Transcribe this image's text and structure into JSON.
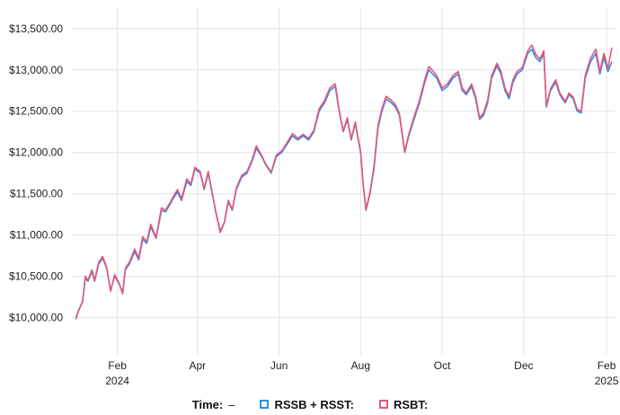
{
  "chart_data": {
    "type": "line",
    "y_ticks": [
      "$10,000.00",
      "$10,500.00",
      "$11,000.00",
      "$11,500.00",
      "$12,000.00",
      "$12,500.00",
      "$13,000.00",
      "$13,500.00"
    ],
    "ylim": [
      9550,
      13650
    ],
    "x_ticks": [
      {
        "label": "Feb",
        "sub": "2024",
        "date": "2024-02-01"
      },
      {
        "label": "Apr",
        "sub": "",
        "date": "2024-04-01"
      },
      {
        "label": "Jun",
        "sub": "",
        "date": "2024-06-01"
      },
      {
        "label": "Aug",
        "sub": "",
        "date": "2024-08-01"
      },
      {
        "label": "Oct",
        "sub": "",
        "date": "2024-10-01"
      },
      {
        "label": "Dec",
        "sub": "",
        "date": "2024-12-01"
      },
      {
        "label": "Feb",
        "sub": "2025",
        "date": "2025-02-01"
      }
    ],
    "xlim": [
      "2023-12-29",
      "2025-02-07"
    ],
    "series": [
      {
        "name": "RSSB + RSST",
        "color": "#2f8fe0",
        "points": [
          [
            "2024-01-01",
            10000
          ],
          [
            "2024-01-03",
            10080
          ],
          [
            "2024-01-06",
            10200
          ],
          [
            "2024-01-08",
            10480
          ],
          [
            "2024-01-10",
            10440
          ],
          [
            "2024-01-13",
            10560
          ],
          [
            "2024-01-15",
            10440
          ],
          [
            "2024-01-18",
            10650
          ],
          [
            "2024-01-21",
            10720
          ],
          [
            "2024-01-24",
            10600
          ],
          [
            "2024-01-27",
            10330
          ],
          [
            "2024-01-30",
            10500
          ],
          [
            "2024-02-02",
            10420
          ],
          [
            "2024-02-05",
            10300
          ],
          [
            "2024-02-07",
            10580
          ],
          [
            "2024-02-10",
            10650
          ],
          [
            "2024-02-14",
            10800
          ],
          [
            "2024-02-17",
            10700
          ],
          [
            "2024-02-20",
            10950
          ],
          [
            "2024-02-23",
            10900
          ],
          [
            "2024-02-26",
            11100
          ],
          [
            "2024-03-01",
            10960
          ],
          [
            "2024-03-05",
            11300
          ],
          [
            "2024-03-08",
            11280
          ],
          [
            "2024-03-11",
            11360
          ],
          [
            "2024-03-14",
            11450
          ],
          [
            "2024-03-17",
            11520
          ],
          [
            "2024-03-20",
            11420
          ],
          [
            "2024-03-24",
            11650
          ],
          [
            "2024-03-27",
            11600
          ],
          [
            "2024-03-30",
            11800
          ],
          [
            "2024-04-03",
            11750
          ],
          [
            "2024-04-06",
            11550
          ],
          [
            "2024-04-09",
            11750
          ],
          [
            "2024-04-12",
            11500
          ],
          [
            "2024-04-15",
            11250
          ],
          [
            "2024-04-18",
            11050
          ],
          [
            "2024-04-21",
            11150
          ],
          [
            "2024-04-24",
            11400
          ],
          [
            "2024-04-27",
            11300
          ],
          [
            "2024-04-30",
            11550
          ],
          [
            "2024-05-04",
            11700
          ],
          [
            "2024-05-08",
            11750
          ],
          [
            "2024-05-12",
            11900
          ],
          [
            "2024-05-15",
            12050
          ],
          [
            "2024-05-19",
            11950
          ],
          [
            "2024-05-22",
            11850
          ],
          [
            "2024-05-26",
            11750
          ],
          [
            "2024-05-30",
            11950
          ],
          [
            "2024-06-03",
            12000
          ],
          [
            "2024-06-07",
            12100
          ],
          [
            "2024-06-11",
            12200
          ],
          [
            "2024-06-15",
            12150
          ],
          [
            "2024-06-19",
            12200
          ],
          [
            "2024-06-23",
            12150
          ],
          [
            "2024-06-27",
            12250
          ],
          [
            "2024-07-01",
            12500
          ],
          [
            "2024-07-05",
            12600
          ],
          [
            "2024-07-09",
            12750
          ],
          [
            "2024-07-13",
            12800
          ],
          [
            "2024-07-16",
            12500
          ],
          [
            "2024-07-19",
            12250
          ],
          [
            "2024-07-22",
            12400
          ],
          [
            "2024-07-25",
            12150
          ],
          [
            "2024-07-28",
            12350
          ],
          [
            "2024-08-01",
            12000
          ],
          [
            "2024-08-03",
            11600
          ],
          [
            "2024-08-05",
            11300
          ],
          [
            "2024-08-08",
            11500
          ],
          [
            "2024-08-11",
            11800
          ],
          [
            "2024-08-14",
            12300
          ],
          [
            "2024-08-17",
            12500
          ],
          [
            "2024-08-20",
            12650
          ],
          [
            "2024-08-24",
            12600
          ],
          [
            "2024-08-27",
            12550
          ],
          [
            "2024-08-30",
            12450
          ],
          [
            "2024-09-03",
            12000
          ],
          [
            "2024-09-06",
            12200
          ],
          [
            "2024-09-10",
            12400
          ],
          [
            "2024-09-14",
            12600
          ],
          [
            "2024-09-18",
            12850
          ],
          [
            "2024-09-21",
            13000
          ],
          [
            "2024-09-24",
            12950
          ],
          [
            "2024-09-27",
            12900
          ],
          [
            "2024-10-01",
            12750
          ],
          [
            "2024-10-05",
            12800
          ],
          [
            "2024-10-09",
            12900
          ],
          [
            "2024-10-13",
            12950
          ],
          [
            "2024-10-16",
            12750
          ],
          [
            "2024-10-19",
            12700
          ],
          [
            "2024-10-23",
            12800
          ],
          [
            "2024-10-26",
            12650
          ],
          [
            "2024-10-29",
            12400
          ],
          [
            "2024-11-01",
            12450
          ],
          [
            "2024-11-04",
            12600
          ],
          [
            "2024-11-07",
            12900
          ],
          [
            "2024-11-11",
            13050
          ],
          [
            "2024-11-14",
            12950
          ],
          [
            "2024-11-17",
            12750
          ],
          [
            "2024-11-20",
            12650
          ],
          [
            "2024-11-23",
            12850
          ],
          [
            "2024-11-26",
            12950
          ],
          [
            "2024-11-30",
            13000
          ],
          [
            "2024-12-04",
            13200
          ],
          [
            "2024-12-07",
            13250
          ],
          [
            "2024-12-10",
            13150
          ],
          [
            "2024-12-13",
            13100
          ],
          [
            "2024-12-16",
            13200
          ],
          [
            "2024-12-18",
            12550
          ],
          [
            "2024-12-21",
            12750
          ],
          [
            "2024-12-25",
            12850
          ],
          [
            "2024-12-28",
            12700
          ],
          [
            "2025-01-01",
            12600
          ],
          [
            "2025-01-04",
            12700
          ],
          [
            "2025-01-07",
            12650
          ],
          [
            "2025-01-10",
            12500
          ],
          [
            "2025-01-13",
            12480
          ],
          [
            "2025-01-16",
            12900
          ],
          [
            "2025-01-20",
            13100
          ],
          [
            "2025-01-24",
            13200
          ],
          [
            "2025-01-27",
            12950
          ],
          [
            "2025-01-30",
            13150
          ],
          [
            "2025-02-02",
            12980
          ],
          [
            "2025-02-05",
            13100
          ]
        ]
      },
      {
        "name": "RSBT",
        "color": "#e8557a",
        "points": [
          [
            "2024-01-01",
            9980
          ],
          [
            "2024-01-03",
            10090
          ],
          [
            "2024-01-06",
            10190
          ],
          [
            "2024-01-08",
            10500
          ],
          [
            "2024-01-10",
            10450
          ],
          [
            "2024-01-13",
            10580
          ],
          [
            "2024-01-15",
            10450
          ],
          [
            "2024-01-18",
            10670
          ],
          [
            "2024-01-21",
            10740
          ],
          [
            "2024-01-24",
            10610
          ],
          [
            "2024-01-27",
            10320
          ],
          [
            "2024-01-30",
            10520
          ],
          [
            "2024-02-02",
            10430
          ],
          [
            "2024-02-05",
            10290
          ],
          [
            "2024-02-07",
            10600
          ],
          [
            "2024-02-10",
            10670
          ],
          [
            "2024-02-14",
            10830
          ],
          [
            "2024-02-17",
            10720
          ],
          [
            "2024-02-20",
            10980
          ],
          [
            "2024-02-23",
            10920
          ],
          [
            "2024-02-26",
            11130
          ],
          [
            "2024-03-01",
            10970
          ],
          [
            "2024-03-05",
            11330
          ],
          [
            "2024-03-08",
            11300
          ],
          [
            "2024-03-11",
            11380
          ],
          [
            "2024-03-14",
            11470
          ],
          [
            "2024-03-17",
            11550
          ],
          [
            "2024-03-20",
            11440
          ],
          [
            "2024-03-24",
            11680
          ],
          [
            "2024-03-27",
            11620
          ],
          [
            "2024-03-30",
            11820
          ],
          [
            "2024-04-03",
            11770
          ],
          [
            "2024-04-06",
            11560
          ],
          [
            "2024-04-09",
            11770
          ],
          [
            "2024-04-12",
            11510
          ],
          [
            "2024-04-15",
            11250
          ],
          [
            "2024-04-18",
            11030
          ],
          [
            "2024-04-21",
            11150
          ],
          [
            "2024-04-24",
            11420
          ],
          [
            "2024-04-27",
            11310
          ],
          [
            "2024-04-30",
            11570
          ],
          [
            "2024-05-04",
            11720
          ],
          [
            "2024-05-08",
            11770
          ],
          [
            "2024-05-12",
            11920
          ],
          [
            "2024-05-15",
            12080
          ],
          [
            "2024-05-19",
            11960
          ],
          [
            "2024-05-22",
            11860
          ],
          [
            "2024-05-26",
            11760
          ],
          [
            "2024-05-30",
            11970
          ],
          [
            "2024-06-03",
            12020
          ],
          [
            "2024-06-07",
            12120
          ],
          [
            "2024-06-11",
            12230
          ],
          [
            "2024-06-15",
            12170
          ],
          [
            "2024-06-19",
            12220
          ],
          [
            "2024-06-23",
            12170
          ],
          [
            "2024-06-27",
            12270
          ],
          [
            "2024-07-01",
            12530
          ],
          [
            "2024-07-05",
            12630
          ],
          [
            "2024-07-09",
            12780
          ],
          [
            "2024-07-13",
            12830
          ],
          [
            "2024-07-16",
            12510
          ],
          [
            "2024-07-19",
            12260
          ],
          [
            "2024-07-22",
            12420
          ],
          [
            "2024-07-25",
            12160
          ],
          [
            "2024-07-28",
            12370
          ],
          [
            "2024-08-01",
            12010
          ],
          [
            "2024-08-03",
            11600
          ],
          [
            "2024-08-05",
            11310
          ],
          [
            "2024-08-08",
            11520
          ],
          [
            "2024-08-11",
            11830
          ],
          [
            "2024-08-14",
            12330
          ],
          [
            "2024-08-17",
            12530
          ],
          [
            "2024-08-20",
            12680
          ],
          [
            "2024-08-24",
            12630
          ],
          [
            "2024-08-27",
            12580
          ],
          [
            "2024-08-30",
            12470
          ],
          [
            "2024-09-03",
            12010
          ],
          [
            "2024-09-06",
            12220
          ],
          [
            "2024-09-10",
            12430
          ],
          [
            "2024-09-14",
            12630
          ],
          [
            "2024-09-18",
            12880
          ],
          [
            "2024-09-21",
            13040
          ],
          [
            "2024-09-24",
            12990
          ],
          [
            "2024-09-27",
            12930
          ],
          [
            "2024-10-01",
            12780
          ],
          [
            "2024-10-05",
            12830
          ],
          [
            "2024-10-09",
            12930
          ],
          [
            "2024-10-13",
            12980
          ],
          [
            "2024-10-16",
            12780
          ],
          [
            "2024-10-19",
            12720
          ],
          [
            "2024-10-23",
            12830
          ],
          [
            "2024-10-26",
            12680
          ],
          [
            "2024-10-29",
            12420
          ],
          [
            "2024-11-01",
            12480
          ],
          [
            "2024-11-04",
            12630
          ],
          [
            "2024-11-07",
            12930
          ],
          [
            "2024-11-11",
            13080
          ],
          [
            "2024-11-14",
            12980
          ],
          [
            "2024-11-17",
            12780
          ],
          [
            "2024-11-20",
            12680
          ],
          [
            "2024-11-23",
            12880
          ],
          [
            "2024-11-26",
            12980
          ],
          [
            "2024-11-30",
            13030
          ],
          [
            "2024-12-04",
            13230
          ],
          [
            "2024-12-07",
            13300
          ],
          [
            "2024-12-10",
            13190
          ],
          [
            "2024-12-13",
            13130
          ],
          [
            "2024-12-16",
            13230
          ],
          [
            "2024-12-18",
            12560
          ],
          [
            "2024-12-21",
            12770
          ],
          [
            "2024-12-25",
            12880
          ],
          [
            "2024-12-28",
            12720
          ],
          [
            "2025-01-01",
            12620
          ],
          [
            "2025-01-04",
            12720
          ],
          [
            "2025-01-07",
            12670
          ],
          [
            "2025-01-10",
            12520
          ],
          [
            "2025-01-13",
            12500
          ],
          [
            "2025-01-16",
            12930
          ],
          [
            "2025-01-20",
            13140
          ],
          [
            "2025-01-24",
            13250
          ],
          [
            "2025-01-27",
            12980
          ],
          [
            "2025-01-30",
            13200
          ],
          [
            "2025-02-02",
            13020
          ],
          [
            "2025-02-05",
            13270
          ]
        ]
      }
    ]
  },
  "legend": {
    "time_label": "Time:",
    "time_value": "–",
    "series1_label": "RSSB + RSST:",
    "series2_label": "RSBT:"
  }
}
